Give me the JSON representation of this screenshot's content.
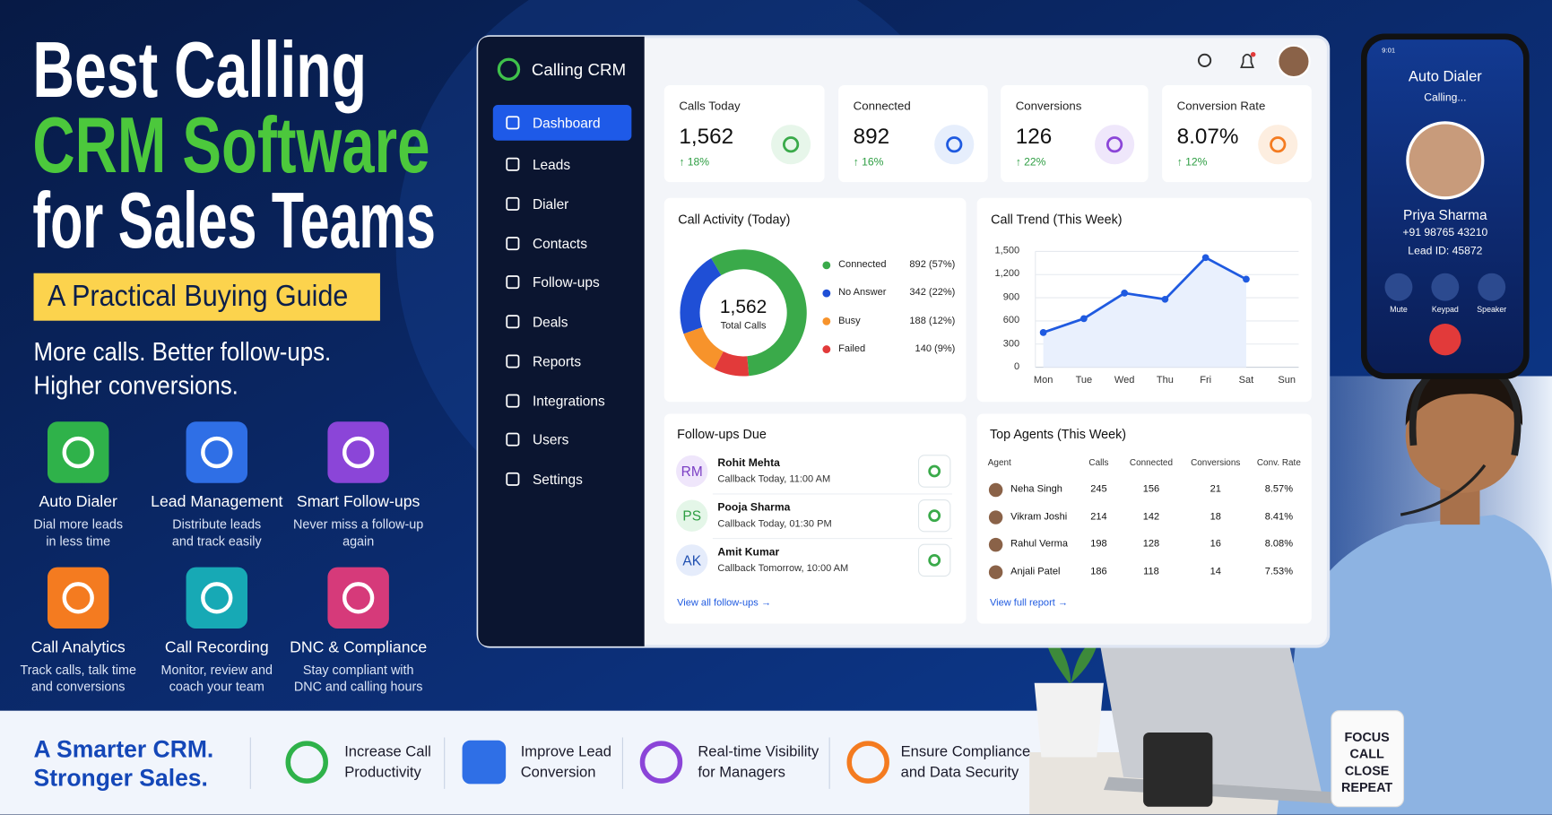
{
  "headline": {
    "line1": "Best Calling",
    "line2": "CRM Software",
    "line3": "for Sales Teams",
    "badge": "A Practical Buying Guide",
    "tagline1": "More calls. Better follow-ups.",
    "tagline2": "Higher conversions."
  },
  "features": [
    {
      "title": "Auto Dialer",
      "desc1": "Dial more leads",
      "desc2": "in less time"
    },
    {
      "title": "Lead Management",
      "desc1": "Distribute leads",
      "desc2": "and track easily"
    },
    {
      "title": "Smart Follow-ups",
      "desc1": "Never miss a follow-up",
      "desc2": "again"
    },
    {
      "title": "Call Analytics",
      "desc1": "Track calls, talk time",
      "desc2": "and conversions"
    },
    {
      "title": "Call Recording",
      "desc1": "Monitor, review and",
      "desc2": "coach your team"
    },
    {
      "title": "DNC & Compliance",
      "desc1": "Stay compliant with",
      "desc2": "DNC and calling hours"
    }
  ],
  "app": {
    "name": "Calling CRM",
    "nav": [
      "Dashboard",
      "Leads",
      "Dialer",
      "Contacts",
      "Follow-ups",
      "Deals",
      "Reports",
      "Integrations",
      "Users",
      "Settings"
    ]
  },
  "stats": [
    {
      "label": "Calls Today",
      "value": "1,562",
      "change": "↑ 18%"
    },
    {
      "label": "Connected",
      "value": "892",
      "change": "↑ 16%"
    },
    {
      "label": "Conversions",
      "value": "126",
      "change": "↑ 22%"
    },
    {
      "label": "Conversion Rate",
      "value": "8.07%",
      "change": "↑ 12%"
    }
  ],
  "chart_data": [
    {
      "type": "donut",
      "title": "Call Activity (Today)",
      "center_value": "1,562",
      "center_label": "Total Calls",
      "categories": [
        "Connected",
        "No Answer",
        "Busy",
        "Failed"
      ],
      "values": [
        892,
        342,
        188,
        140
      ],
      "value_labels": [
        "892 (57%)",
        "342 (22%)",
        "188 (12%)",
        "140 (9%)"
      ],
      "colors": [
        "#3aaa4a",
        "#1f4fd6",
        "#f7932b",
        "#e23a3a"
      ]
    },
    {
      "type": "line",
      "title": "Call Trend (This Week)",
      "categories": [
        "Mon",
        "Tue",
        "Wed",
        "Thu",
        "Fri",
        "Sat",
        "Sun"
      ],
      "values": [
        450,
        630,
        960,
        880,
        1420,
        1140,
        null
      ],
      "color": "#1f5ae0",
      "ylim": [
        0,
        1500
      ],
      "yticks": [
        0,
        300,
        600,
        900,
        {
          "value": 1200,
          "label": "1,200"
        },
        {
          "value": 1500,
          "label": "1,500"
        }
      ],
      "grid": true
    }
  ],
  "followups": {
    "title": "Follow-ups Due",
    "items": [
      {
        "initials": "RM",
        "name": "Rohit Mehta",
        "note": "Callback Today, 11:00 AM"
      },
      {
        "initials": "PS",
        "name": "Pooja Sharma",
        "note": "Callback Today, 01:30 PM"
      },
      {
        "initials": "AK",
        "name": "Amit Kumar",
        "note": "Callback Tomorrow, 10:00 AM"
      }
    ],
    "link": "View all follow-ups →"
  },
  "agents": {
    "title": "Top Agents (This Week)",
    "columns": [
      "Agent",
      "Calls",
      "Connected",
      "Conversions",
      "Conv. Rate"
    ],
    "rows": [
      [
        "Neha Singh",
        "245",
        "156",
        "21",
        "8.57%"
      ],
      [
        "Vikram Joshi",
        "214",
        "142",
        "18",
        "8.41%"
      ],
      [
        "Rahul Verma",
        "198",
        "128",
        "16",
        "8.08%"
      ],
      [
        "Anjali Patel",
        "186",
        "118",
        "14",
        "7.53%"
      ]
    ],
    "link": "View full report →"
  },
  "phone": {
    "time": "9:01",
    "title": "Auto Dialer",
    "status": "Calling...",
    "name": "Priya Sharma",
    "number": "+91 98765 43210",
    "lead": "Lead ID: 45872",
    "buttons": [
      "Mute",
      "Keypad",
      "Speaker"
    ]
  },
  "mug": [
    "FOCUS",
    "CALL",
    "CLOSE",
    "REPEAT"
  ],
  "footer": {
    "slogan1": "A Smarter CRM.",
    "slogan2": "Stronger Sales.",
    "benefits": [
      {
        "line1": "Increase Call",
        "line2": "Productivity"
      },
      {
        "line1": "Improve Lead",
        "line2": "Conversion"
      },
      {
        "line1": "Real-time Visibility",
        "line2": "for Managers"
      },
      {
        "line1": "Ensure Compliance",
        "line2": "and Data Security"
      }
    ]
  }
}
